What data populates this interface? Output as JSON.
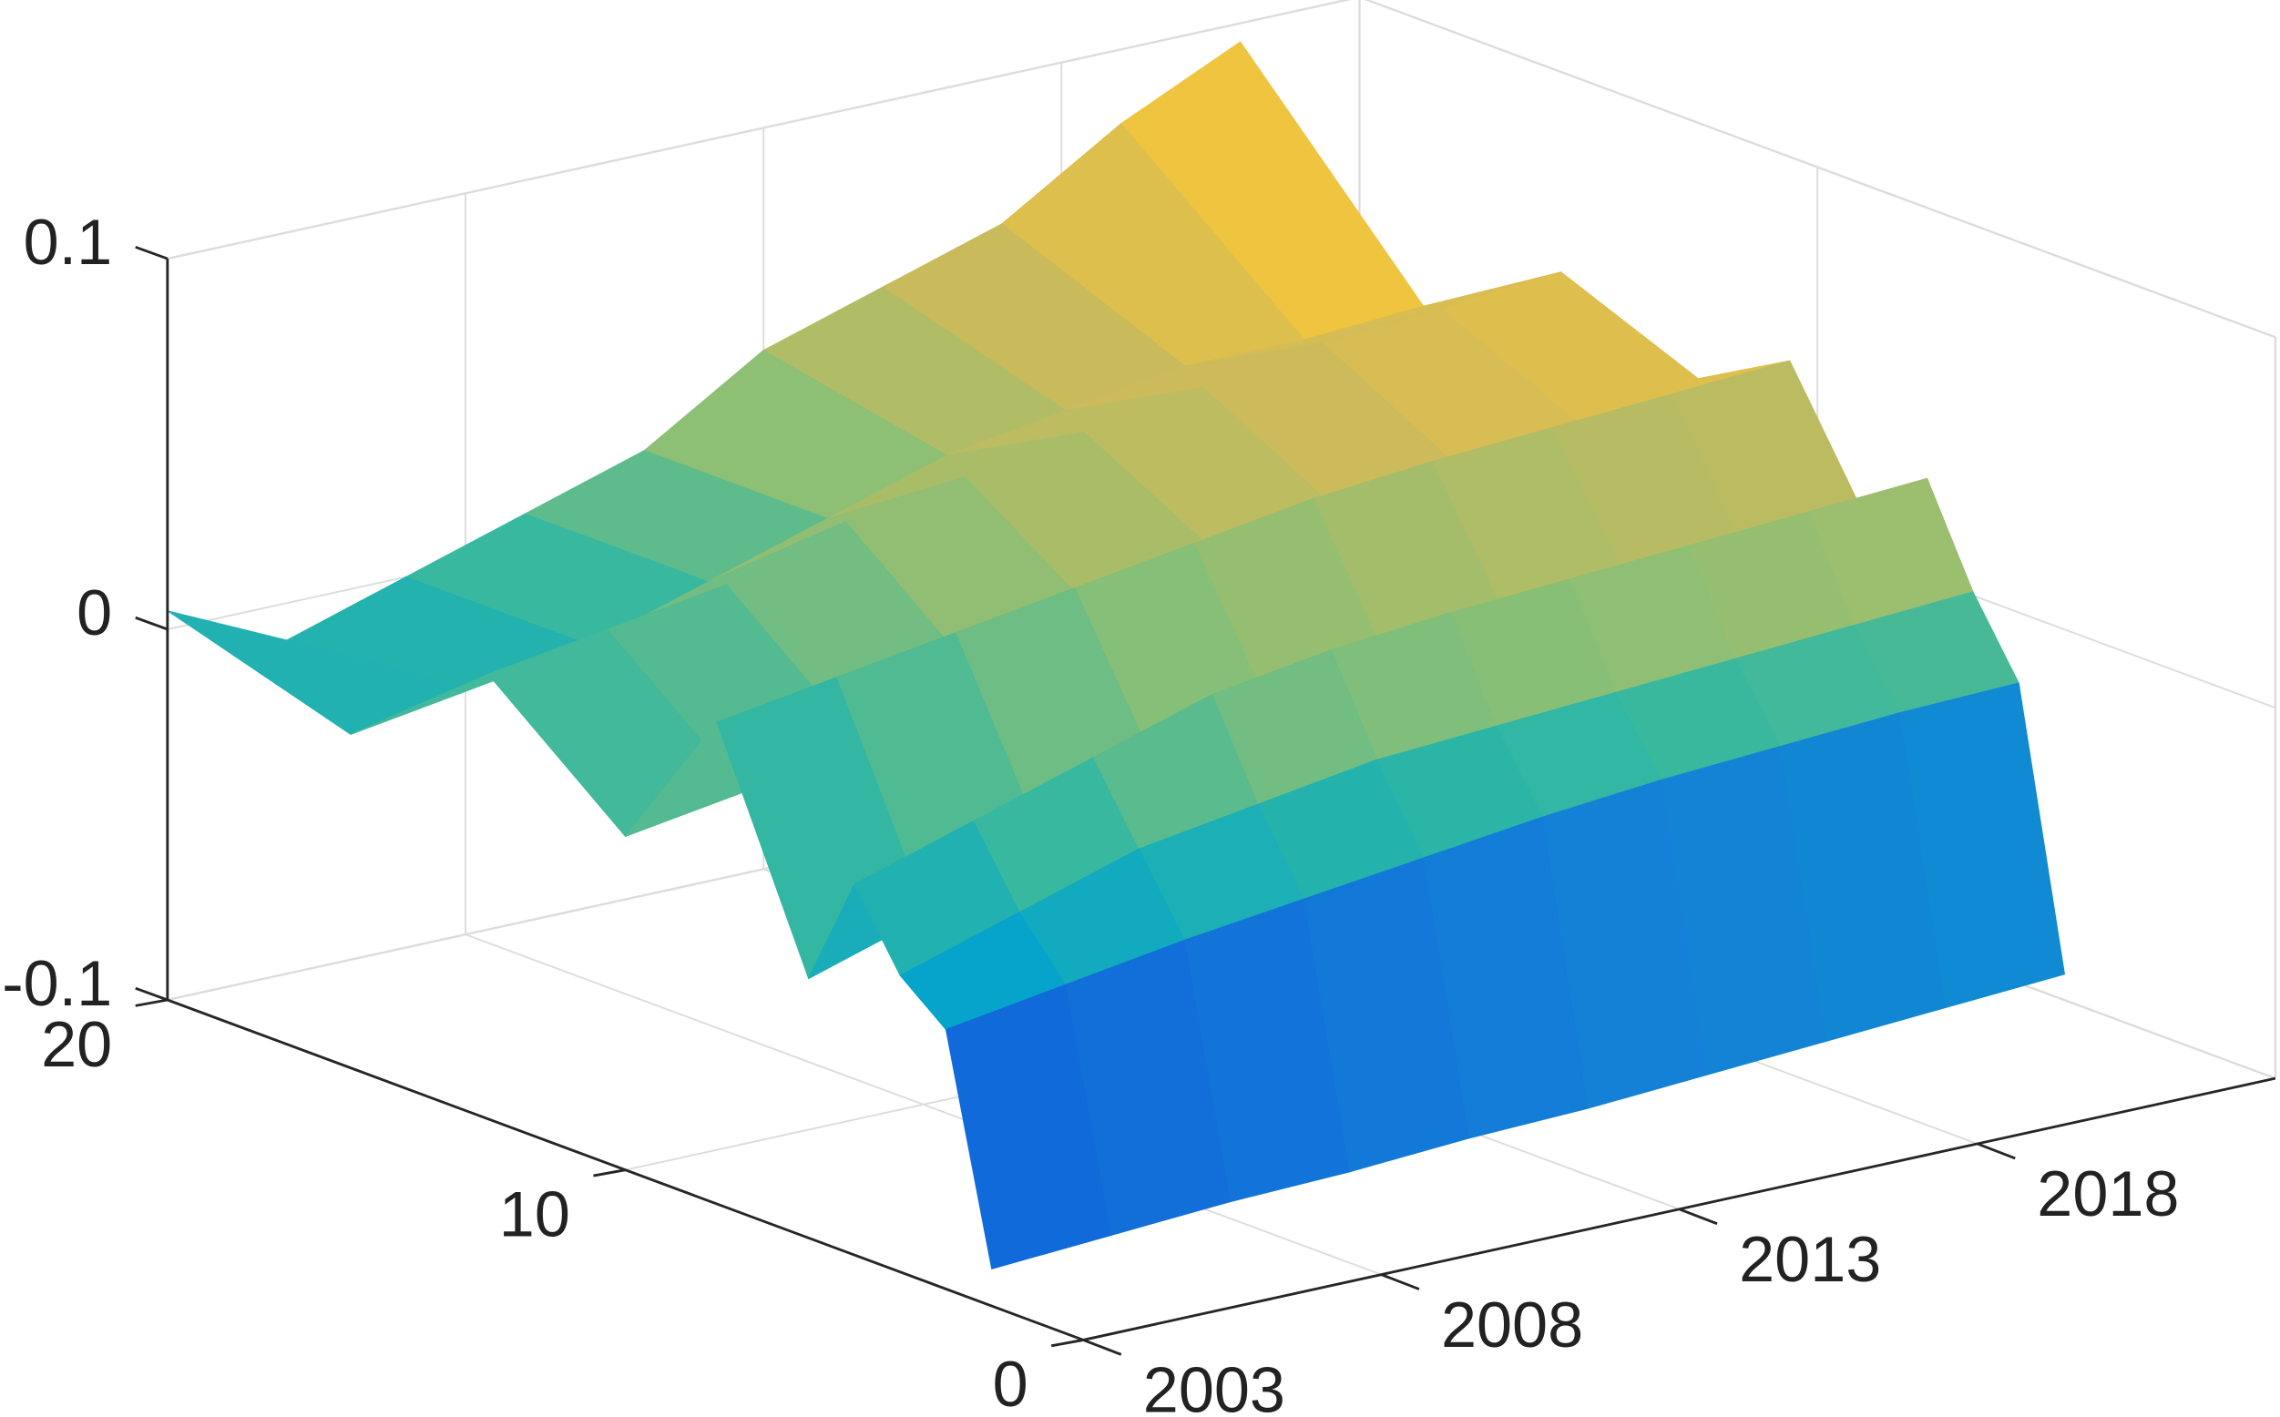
{
  "chart_data": {
    "type": "surface",
    "x": [
      2003,
      2005,
      2007,
      2009,
      2011,
      2013,
      2015,
      2017,
      2019,
      2021
    ],
    "y": [
      2,
      3,
      4,
      5,
      6,
      8,
      10,
      13,
      16,
      20
    ],
    "z": [
      [
        -0.09,
        -0.088,
        -0.086,
        -0.085,
        -0.083,
        -0.082,
        -0.08,
        -0.078,
        -0.076,
        -0.074
      ],
      [
        -0.03,
        -0.025,
        -0.02,
        -0.016,
        -0.012,
        -0.008,
        -0.005,
        -0.003,
        -0.001,
        0.0
      ],
      [
        -0.02,
        -0.01,
        0.0,
        0.005,
        0.01,
        0.012,
        0.014,
        0.016,
        0.018,
        0.02
      ],
      [
        0.0,
        0.01,
        0.02,
        0.03,
        0.035,
        0.038,
        0.04,
        0.042,
        0.044,
        0.046
      ],
      [
        -0.03,
        -0.02,
        -0.01,
        0.0,
        0.005,
        0.01,
        0.015,
        0.02,
        0.02,
        0.022
      ],
      [
        0.03,
        0.035,
        0.04,
        0.045,
        0.05,
        0.055,
        0.058,
        0.06,
        0.062,
        0.064
      ],
      [
        -0.01,
        -0.005,
        0.0,
        0.01,
        0.02,
        0.03,
        0.035,
        0.04,
        0.045,
        0.05
      ],
      [
        0.02,
        0.025,
        0.03,
        0.04,
        0.045,
        0.05,
        0.055,
        0.06,
        0.062,
        0.065
      ],
      [
        -0.01,
        -0.005,
        0.0,
        0.01,
        0.02,
        0.03,
        0.035,
        0.04,
        0.04,
        0.042
      ],
      [
        0.005,
        -0.01,
        0.0,
        0.01,
        0.02,
        0.04,
        0.05,
        0.06,
        0.08,
        0.095
      ]
    ],
    "xlim": [
      2003,
      2023
    ],
    "ylim": [
      0,
      20
    ],
    "zlim": [
      -0.1,
      0.1
    ],
    "xticks": [
      2003,
      2008,
      2013,
      2018
    ],
    "yticks": [
      0,
      10,
      20
    ],
    "zticks": [
      -0.1,
      0,
      0.1
    ],
    "grid": true,
    "colormap": "parula"
  }
}
